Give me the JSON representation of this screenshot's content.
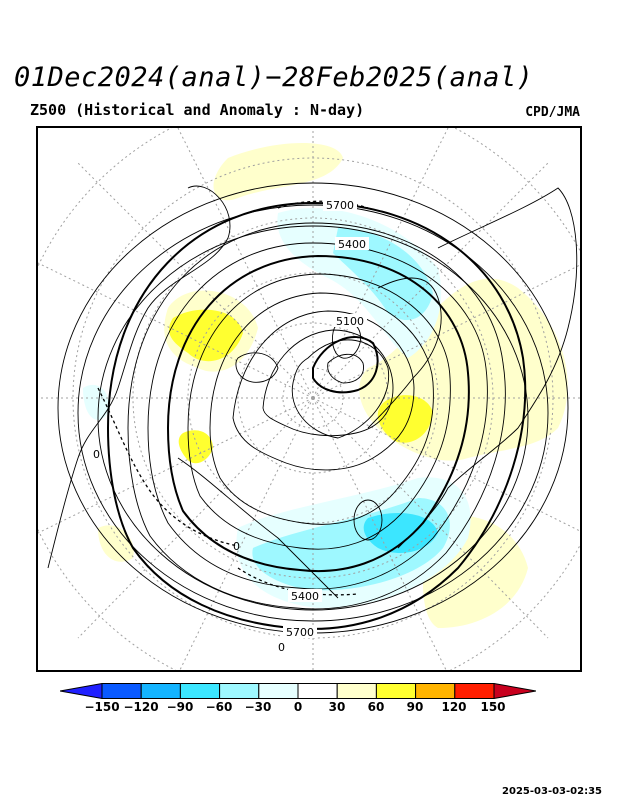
{
  "header": {
    "title": "01Dec2024(anal)−28Feb2025(anal)",
    "subtitle": "Z500 (Historical and Anomaly : N-day)",
    "source": "CPD/JMA"
  },
  "map": {
    "projection": "north-polar-stereographic",
    "variable": "Z500",
    "contour_labels": [
      "5700",
      "5400",
      "5100",
      "5400",
      "5700",
      "0",
      "0",
      "0"
    ],
    "colors": {
      "land_outline": "#000000",
      "graticule": "#a0a0a0",
      "contour": "#000000"
    }
  },
  "colorbar": {
    "ticks": [
      "−150",
      "−120",
      "−90",
      "−60",
      "−30",
      "0",
      "30",
      "60",
      "90",
      "120",
      "150"
    ],
    "colors": [
      "#2020ff",
      "#0a5aff",
      "#14b4ff",
      "#3ce6ff",
      "#9ef8ff",
      "#e6ffff",
      "#ffffff",
      "#ffffcc",
      "#ffff30",
      "#ffb400",
      "#ff1e00",
      "#c8001e"
    ]
  },
  "footer": {
    "timestamp": "2025-03-03-02:35"
  }
}
